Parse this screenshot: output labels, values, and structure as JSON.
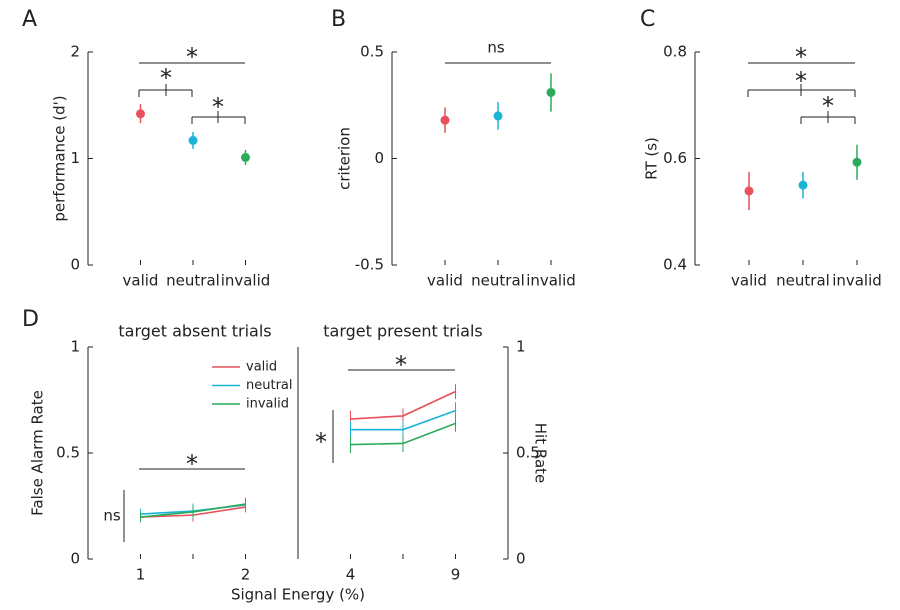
{
  "chart_data": [
    {
      "type": "errorbar",
      "panel_label": "A",
      "ylabel": "performance (d')",
      "categories": [
        "valid",
        "neutral",
        "invalid"
      ],
      "values": [
        1.42,
        1.17,
        1.01
      ],
      "errors": [
        0.09,
        0.08,
        0.07
      ],
      "colors": [
        "#e8505b",
        "#1ab5d6",
        "#2aaa5a"
      ],
      "ylim": [
        0,
        2
      ],
      "yticks": [
        0,
        1,
        2
      ],
      "annotations": [
        "*",
        "*",
        "*"
      ]
    },
    {
      "type": "errorbar",
      "panel_label": "B",
      "ylabel": "criterion",
      "categories": [
        "valid",
        "neutral",
        "invalid"
      ],
      "values": [
        0.18,
        0.2,
        0.31
      ],
      "errors": [
        0.06,
        0.065,
        0.09
      ],
      "colors": [
        "#e8505b",
        "#1ab5d6",
        "#2aaa5a"
      ],
      "ylim": [
        -0.5,
        0.5
      ],
      "yticks": [
        -0.5,
        0,
        0.5
      ],
      "annotations": [
        "ns"
      ]
    },
    {
      "type": "errorbar",
      "panel_label": "C",
      "ylabel": "RT (s)",
      "categories": [
        "valid",
        "neutral",
        "invalid"
      ],
      "values": [
        0.539,
        0.55,
        0.593
      ],
      "errors": [
        0.036,
        0.025,
        0.033
      ],
      "colors": [
        "#e8505b",
        "#1ab5d6",
        "#2aaa5a"
      ],
      "ylim": [
        0.4,
        0.8
      ],
      "yticks": [
        0.4,
        0.6,
        0.8
      ],
      "annotations": [
        "*",
        "*",
        "*"
      ]
    },
    {
      "type": "line",
      "panel_label": "D",
      "title": "target absent trials",
      "ylabel": "False Alarm Rate",
      "xlabel": "Signal Energy (%)",
      "categories": [
        "1",
        null,
        "2"
      ],
      "ylim": [
        0,
        1
      ],
      "yticks": [
        0,
        0.5,
        1
      ],
      "legend": "upper right",
      "series": [
        {
          "name": "valid",
          "color": "#e8505b",
          "values": [
            0.198,
            0.207,
            0.245
          ],
          "errors": [
            0.025,
            0.03,
            0.025
          ]
        },
        {
          "name": "neutral",
          "color": "#1ab5d6",
          "values": [
            0.212,
            0.226,
            0.255
          ],
          "errors": [
            0.025,
            0.035,
            0.03
          ]
        },
        {
          "name": "invalid",
          "color": "#2aaa5a",
          "values": [
            0.198,
            0.222,
            0.259
          ],
          "errors": [
            0.025,
            0.03,
            0.03
          ]
        }
      ],
      "annotations": [
        "*",
        "ns"
      ]
    },
    {
      "type": "line",
      "title": "target present trials",
      "y2label": "Hit Rate",
      "categories": [
        "4",
        null,
        "9"
      ],
      "y2lim": [
        0,
        1
      ],
      "y2ticks": [
        0,
        0.5,
        1
      ],
      "series": [
        {
          "color": "#e8505b",
          "values": [
            0.66,
            0.675,
            0.79
          ],
          "errors": [
            0.04,
            0.035,
            0.035
          ],
          "axis": "y2"
        },
        {
          "color": "#1ab5d6",
          "values": [
            0.61,
            0.61,
            0.7
          ],
          "errors": [
            0.04,
            0.04,
            0.04
          ],
          "axis": "y2"
        },
        {
          "color": "#2aaa5a",
          "values": [
            0.54,
            0.545,
            0.64
          ],
          "errors": [
            0.04,
            0.04,
            0.04
          ],
          "axis": "y2"
        }
      ],
      "annotations": [
        "*",
        "*"
      ]
    }
  ]
}
